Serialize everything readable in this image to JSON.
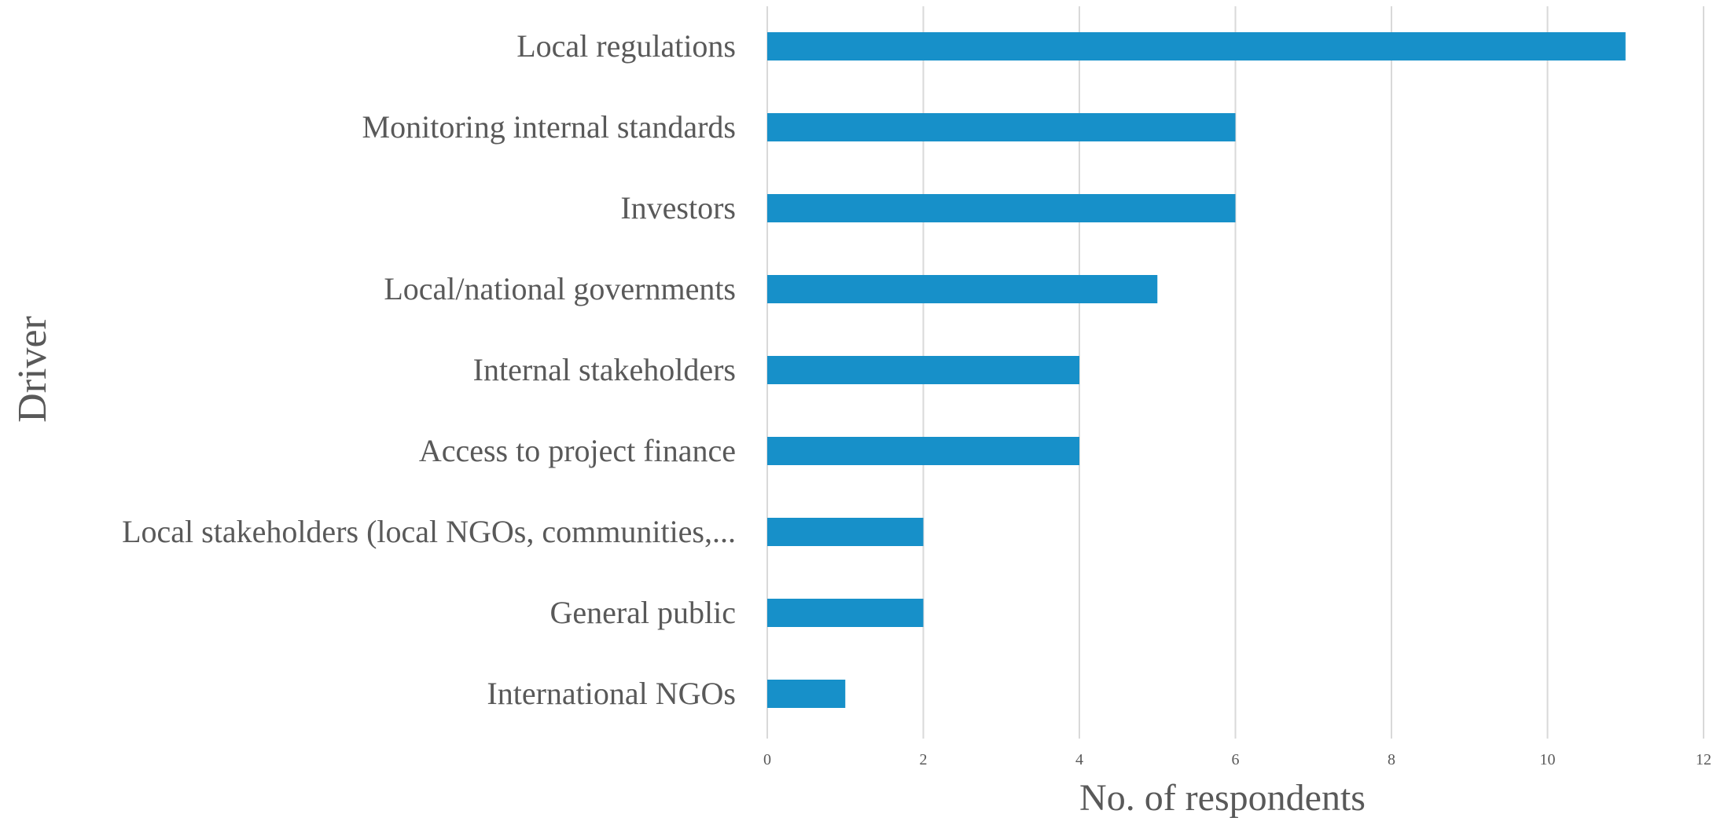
{
  "chart_data": {
    "type": "bar",
    "orientation": "horizontal",
    "categories": [
      "Local regulations",
      "Monitoring internal standards",
      "Investors",
      "Local/national governments",
      "Internal stakeholders",
      "Access to project finance",
      "Local stakeholders (local NGOs, communities,...",
      "General public",
      "International NGOs"
    ],
    "values": [
      11,
      6,
      6,
      5,
      4,
      4,
      2,
      2,
      1
    ],
    "xlabel": "No. of respondents",
    "ylabel": "Driver",
    "xlim": [
      0,
      12
    ],
    "xticks": [
      0,
      2,
      4,
      6,
      8,
      10,
      12
    ],
    "grid": "vertical",
    "legend": "none",
    "colors": {
      "bar": "#1790C9",
      "grid": "#D9D9D9",
      "text": "#595959"
    }
  }
}
